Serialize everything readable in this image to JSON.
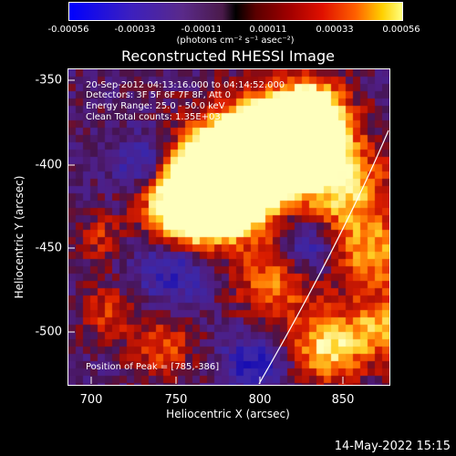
{
  "colorbar": {
    "ticks": [
      "-0.00056",
      "-0.00033",
      "-0.00011",
      "0.00011",
      "0.00033",
      "0.00056"
    ],
    "unit_label": "(photons cm⁻² s⁻¹ asec⁻²)"
  },
  "title": "Reconstructed RHESSI Image",
  "info": {
    "time_range": "20-Sep-2012 04:13:16.000 to 04:14:52.000",
    "detectors": "Detectors: 3F 5F 6F 7F 8F, Att 0",
    "energy_range": "Energy Range: 25.0 - 50.0 keV",
    "method": "Clean    Total counts: 1.35E+03",
    "peak": "Position of Peak = [785,-386]"
  },
  "axes": {
    "xlabel": "Heliocentric X (arcsec)",
    "ylabel": "Heliocentric Y (arcsec)",
    "xticks": [
      "700",
      "750",
      "800",
      "850"
    ],
    "yticks": [
      "-350",
      "-400",
      "-450",
      "-500"
    ],
    "xlim": [
      685,
      877
    ],
    "ylim": [
      -533,
      -343
    ]
  },
  "datestamp": "14-May-2022 15:15",
  "colors": {
    "background": "#000000",
    "axes": "#ffffff",
    "limb": "#ffffff"
  }
}
